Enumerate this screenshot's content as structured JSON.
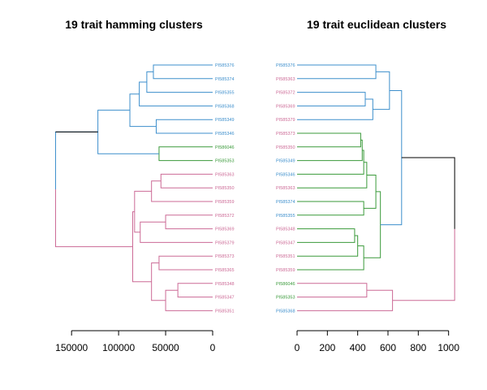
{
  "colors": {
    "blue": "#3d8fcc",
    "green": "#3a9a3a",
    "pink": "#cc6a96",
    "black": "#000000"
  },
  "chart_data": [
    {
      "type": "dendrogram",
      "title": "19 trait hamming clusters",
      "orientation": "leaves-right",
      "xlim": [
        170000,
        0
      ],
      "ticks": [
        "150000",
        "100000",
        "50000",
        "0"
      ],
      "tick_values": [
        150000,
        100000,
        50000,
        0
      ],
      "leaves": [
        {
          "label": "PI585376",
          "color": "blue"
        },
        {
          "label": "PI585374",
          "color": "blue"
        },
        {
          "label": "PI585355",
          "color": "blue"
        },
        {
          "label": "PI585368",
          "color": "blue"
        },
        {
          "label": "PI585349",
          "color": "blue"
        },
        {
          "label": "PI585346",
          "color": "blue"
        },
        {
          "label": "PI586046",
          "color": "green"
        },
        {
          "label": "PI585353",
          "color": "green"
        },
        {
          "label": "PI585363",
          "color": "pink"
        },
        {
          "label": "PI585350",
          "color": "pink"
        },
        {
          "label": "PI585359",
          "color": "pink"
        },
        {
          "label": "PI585372",
          "color": "pink"
        },
        {
          "label": "PI585369",
          "color": "pink"
        },
        {
          "label": "PI585379",
          "color": "pink"
        },
        {
          "label": "PI585373",
          "color": "pink"
        },
        {
          "label": "PI585365",
          "color": "pink"
        },
        {
          "label": "PI585348",
          "color": "pink"
        },
        {
          "label": "PI585347",
          "color": "pink"
        },
        {
          "label": "PI585351",
          "color": "pink"
        }
      ],
      "merges": [
        {
          "a": 0,
          "b": 1,
          "height": 63000,
          "color": "blue"
        },
        {
          "a": "n0",
          "b": 2,
          "height": 70000,
          "color": "blue"
        },
        {
          "a": "n1",
          "b": 3,
          "height": 78000,
          "color": "blue"
        },
        {
          "a": 4,
          "b": 5,
          "height": 60000,
          "color": "blue"
        },
        {
          "a": "n2",
          "b": "n3",
          "height": 88000,
          "color": "blue"
        },
        {
          "a": 6,
          "b": 7,
          "height": 57000,
          "color": "green"
        },
        {
          "a": "n4",
          "b": "n5",
          "height": 122000,
          "color": "blue"
        },
        {
          "a": 8,
          "b": 9,
          "height": 55000,
          "color": "pink"
        },
        {
          "a": "n7",
          "b": 10,
          "height": 65000,
          "color": "pink"
        },
        {
          "a": 11,
          "b": 12,
          "height": 50000,
          "color": "pink"
        },
        {
          "a": "n9",
          "b": 13,
          "height": 77000,
          "color": "pink"
        },
        {
          "a": "n8",
          "b": "n10",
          "height": 83000,
          "color": "pink"
        },
        {
          "a": 14,
          "b": 15,
          "height": 57000,
          "color": "pink"
        },
        {
          "a": 16,
          "b": 17,
          "height": 37000,
          "color": "pink"
        },
        {
          "a": "n13",
          "b": 18,
          "height": 50000,
          "color": "pink"
        },
        {
          "a": "n12",
          "b": "n14",
          "height": 65000,
          "color": "pink"
        },
        {
          "a": "n11",
          "b": "n15",
          "height": 85000,
          "color": "pink"
        },
        {
          "a": "n6",
          "b": "n16",
          "height": 167000,
          "color": "mixed"
        }
      ]
    },
    {
      "type": "dendrogram",
      "title": "19 trait euclidean clusters",
      "orientation": "leaves-left",
      "xlim": [
        0,
        1050
      ],
      "ticks": [
        "0",
        "200",
        "400",
        "600",
        "800",
        "1000"
      ],
      "tick_values": [
        0,
        200,
        400,
        600,
        800,
        1000
      ],
      "leaves": [
        {
          "label": "PI585376",
          "color": "blue"
        },
        {
          "label": "PI585363",
          "color": "pink"
        },
        {
          "label": "PI585372",
          "color": "pink"
        },
        {
          "label": "PI585369",
          "color": "pink"
        },
        {
          "label": "PI585379",
          "color": "pink"
        },
        {
          "label": "PI585373",
          "color": "pink"
        },
        {
          "label": "PI585350",
          "color": "pink"
        },
        {
          "label": "PI585349",
          "color": "blue"
        },
        {
          "label": "PI585346",
          "color": "blue"
        },
        {
          "label": "PI585363",
          "color": "pink"
        },
        {
          "label": "PI585374",
          "color": "blue"
        },
        {
          "label": "PI585355",
          "color": "blue"
        },
        {
          "label": "PI585348",
          "color": "pink"
        },
        {
          "label": "PI585347",
          "color": "pink"
        },
        {
          "label": "PI585351",
          "color": "pink"
        },
        {
          "label": "PI585359",
          "color": "pink"
        },
        {
          "label": "PI586046",
          "color": "green"
        },
        {
          "label": "PI585353",
          "color": "green"
        },
        {
          "label": "PI585368",
          "color": "blue"
        }
      ],
      "merges": [
        {
          "a": 0,
          "b": 1,
          "height": 520,
          "color": "blue"
        },
        {
          "a": 2,
          "b": 3,
          "height": 450,
          "color": "blue"
        },
        {
          "a": "n1",
          "b": 4,
          "height": 500,
          "color": "blue"
        },
        {
          "a": "n0",
          "b": "n2",
          "height": 610,
          "color": "blue"
        },
        {
          "a": 5,
          "b": 6,
          "height": 420,
          "color": "green"
        },
        {
          "a": "n4",
          "b": 7,
          "height": 430,
          "color": "green"
        },
        {
          "a": "n5",
          "b": 8,
          "height": 440,
          "color": "green"
        },
        {
          "a": "n6",
          "b": 9,
          "height": 460,
          "color": "green"
        },
        {
          "a": 10,
          "b": 11,
          "height": 440,
          "color": "green"
        },
        {
          "a": "n7",
          "b": "n8",
          "height": 520,
          "color": "green"
        },
        {
          "a": 12,
          "b": 13,
          "height": 380,
          "color": "green"
        },
        {
          "a": "n10",
          "b": 14,
          "height": 400,
          "color": "green"
        },
        {
          "a": "n11",
          "b": 15,
          "height": 440,
          "color": "green"
        },
        {
          "a": "n9",
          "b": "n12",
          "height": 550,
          "color": "green"
        },
        {
          "a": "n3",
          "b": "n13",
          "height": 690,
          "color": "blue"
        },
        {
          "a": 16,
          "b": 17,
          "height": 460,
          "color": "pink"
        },
        {
          "a": "n15",
          "b": 18,
          "height": 630,
          "color": "pink"
        },
        {
          "a": "n14",
          "b": "n16",
          "height": 1040,
          "color": "mixed"
        }
      ]
    }
  ]
}
